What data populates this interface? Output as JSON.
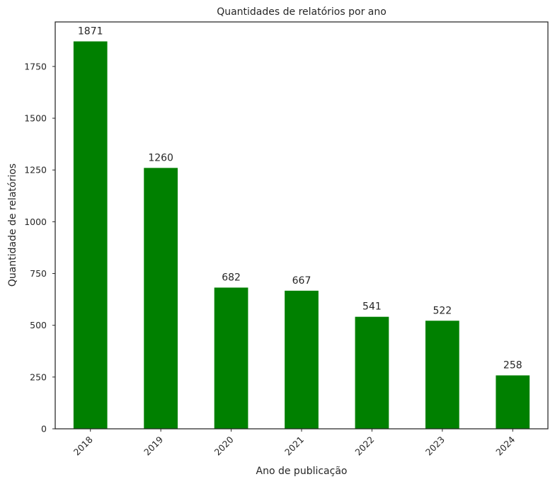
{
  "chart_data": {
    "type": "bar",
    "title": "Quantidades de relatórios por ano",
    "xlabel": "Ano de publicação",
    "ylabel": "Quantidade de relatórios",
    "categories": [
      "2018",
      "2019",
      "2020",
      "2021",
      "2022",
      "2023",
      "2024"
    ],
    "values": [
      1871,
      1260,
      682,
      667,
      541,
      522,
      258
    ],
    "value_labels": [
      "1871",
      "1260",
      "682",
      "667",
      "541",
      "522",
      "258"
    ],
    "ylim": [
      0,
      1965
    ],
    "yticks": [
      0,
      250,
      500,
      750,
      1000,
      1250,
      1500,
      1750
    ],
    "ytick_labels": [
      "0",
      "250",
      "500",
      "750",
      "1000",
      "1250",
      "1500",
      "1750"
    ],
    "grid": false,
    "bar_color": "#008000",
    "xtick_rotation": -45
  }
}
